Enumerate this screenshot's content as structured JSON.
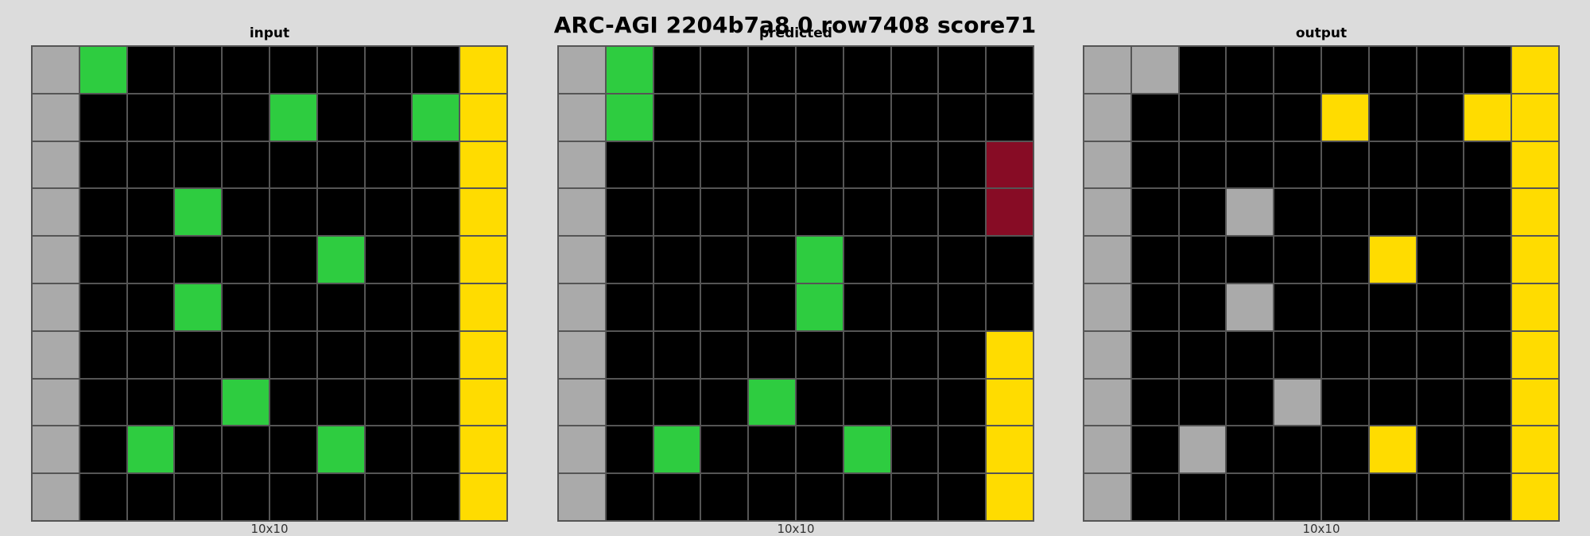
{
  "title": "ARC-AGI 2204b7a8 0 row7408 score71",
  "palette": {
    "0": "#000000",
    "3": "#2ecc40",
    "4": "#ffdc00",
    "5": "#aaaaaa",
    "9": "#870c25"
  },
  "panels": [
    {
      "id": "input",
      "label": "input",
      "caption": "10x10",
      "grid": [
        [
          5,
          3,
          0,
          0,
          0,
          0,
          0,
          0,
          0,
          4
        ],
        [
          5,
          0,
          0,
          0,
          0,
          3,
          0,
          0,
          3,
          4
        ],
        [
          5,
          0,
          0,
          0,
          0,
          0,
          0,
          0,
          0,
          4
        ],
        [
          5,
          0,
          0,
          3,
          0,
          0,
          0,
          0,
          0,
          4
        ],
        [
          5,
          0,
          0,
          0,
          0,
          0,
          3,
          0,
          0,
          4
        ],
        [
          5,
          0,
          0,
          3,
          0,
          0,
          0,
          0,
          0,
          4
        ],
        [
          5,
          0,
          0,
          0,
          0,
          0,
          0,
          0,
          0,
          4
        ],
        [
          5,
          0,
          0,
          0,
          3,
          0,
          0,
          0,
          0,
          4
        ],
        [
          5,
          0,
          3,
          0,
          0,
          0,
          3,
          0,
          0,
          4
        ],
        [
          5,
          0,
          0,
          0,
          0,
          0,
          0,
          0,
          0,
          4
        ]
      ]
    },
    {
      "id": "predicted",
      "label": "predicted",
      "caption": "10x10",
      "grid": [
        [
          5,
          3,
          0,
          0,
          0,
          0,
          0,
          0,
          0,
          0
        ],
        [
          5,
          3,
          0,
          0,
          0,
          0,
          0,
          0,
          0,
          0
        ],
        [
          5,
          0,
          0,
          0,
          0,
          0,
          0,
          0,
          0,
          9
        ],
        [
          5,
          0,
          0,
          0,
          0,
          0,
          0,
          0,
          0,
          9
        ],
        [
          5,
          0,
          0,
          0,
          0,
          3,
          0,
          0,
          0,
          0
        ],
        [
          5,
          0,
          0,
          0,
          0,
          3,
          0,
          0,
          0,
          0
        ],
        [
          5,
          0,
          0,
          0,
          0,
          0,
          0,
          0,
          0,
          4
        ],
        [
          5,
          0,
          0,
          0,
          3,
          0,
          0,
          0,
          0,
          4
        ],
        [
          5,
          0,
          3,
          0,
          0,
          0,
          3,
          0,
          0,
          4
        ],
        [
          5,
          0,
          0,
          0,
          0,
          0,
          0,
          0,
          0,
          4
        ]
      ]
    },
    {
      "id": "output",
      "label": "output",
      "caption": "10x10",
      "grid": [
        [
          5,
          5,
          0,
          0,
          0,
          0,
          0,
          0,
          0,
          4
        ],
        [
          5,
          0,
          0,
          0,
          0,
          4,
          0,
          0,
          4,
          4
        ],
        [
          5,
          0,
          0,
          0,
          0,
          0,
          0,
          0,
          0,
          4
        ],
        [
          5,
          0,
          0,
          5,
          0,
          0,
          0,
          0,
          0,
          4
        ],
        [
          5,
          0,
          0,
          0,
          0,
          0,
          4,
          0,
          0,
          4
        ],
        [
          5,
          0,
          0,
          5,
          0,
          0,
          0,
          0,
          0,
          4
        ],
        [
          5,
          0,
          0,
          0,
          0,
          0,
          0,
          0,
          0,
          4
        ],
        [
          5,
          0,
          0,
          0,
          5,
          0,
          0,
          0,
          0,
          4
        ],
        [
          5,
          0,
          5,
          0,
          0,
          0,
          4,
          0,
          0,
          4
        ],
        [
          5,
          0,
          0,
          0,
          0,
          0,
          0,
          0,
          0,
          4
        ]
      ]
    }
  ]
}
